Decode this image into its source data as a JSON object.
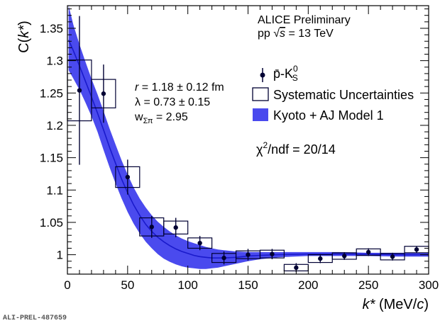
{
  "chart_data": {
    "type": "scatter",
    "title": "",
    "xlabel": {
      "main": "k*",
      "unit_open": " (MeV/",
      "unit_var": "c",
      "unit_close": ")"
    },
    "ylabel": {
      "prefix": "C(",
      "var": "k*",
      "suffix": ")"
    },
    "xlim": [
      0,
      300
    ],
    "ylim": [
      0.97,
      1.385
    ],
    "x_ticks": [
      0,
      50,
      100,
      150,
      200,
      250,
      300
    ],
    "y_ticks": [
      1,
      1.05,
      1.1,
      1.15,
      1.2,
      1.25,
      1.3,
      1.35
    ],
    "x_tick_labels": [
      "0",
      "50",
      "100",
      "150",
      "200",
      "250",
      "300"
    ],
    "y_tick_labels": [
      "1",
      "1.05",
      "1.1",
      "1.15",
      "1.2",
      "1.25",
      "1.3",
      "1.35"
    ],
    "series": [
      {
        "name": "p̄-K⁰S",
        "kind": "data",
        "color": "#000033",
        "points": [
          {
            "x": 10,
            "y": 1.254,
            "err": 0.115,
            "sys_w": 20,
            "sys_h": 0.047
          },
          {
            "x": 30,
            "y": 1.249,
            "err": 0.045,
            "sys_w": 20,
            "sys_h": 0.022
          },
          {
            "x": 50,
            "y": 1.12,
            "err": 0.027,
            "sys_w": 20,
            "sys_h": 0.016
          },
          {
            "x": 70,
            "y": 1.043,
            "err": 0.017,
            "sys_w": 20,
            "sys_h": 0.014
          },
          {
            "x": 90,
            "y": 1.042,
            "err": 0.015,
            "sys_w": 20,
            "sys_h": 0.01
          },
          {
            "x": 110,
            "y": 1.018,
            "err": 0.011,
            "sys_w": 20,
            "sys_h": 0.008
          },
          {
            "x": 130,
            "y": 0.995,
            "err": 0.01,
            "sys_w": 20,
            "sys_h": 0.007
          },
          {
            "x": 150,
            "y": 1.0,
            "err": 0.009,
            "sys_w": 20,
            "sys_h": 0.006
          },
          {
            "x": 170,
            "y": 1.001,
            "err": 0.008,
            "sys_w": 20,
            "sys_h": 0.006
          },
          {
            "x": 190,
            "y": 0.98,
            "err": 0.007,
            "sys_w": 20,
            "sys_h": 0.005
          },
          {
            "x": 210,
            "y": 0.994,
            "err": 0.007,
            "sys_w": 20,
            "sys_h": 0.006
          },
          {
            "x": 230,
            "y": 0.998,
            "err": 0.006,
            "sys_w": 20,
            "sys_h": 0.005
          },
          {
            "x": 250,
            "y": 1.004,
            "err": 0.006,
            "sys_w": 20,
            "sys_h": 0.005
          },
          {
            "x": 270,
            "y": 0.997,
            "err": 0.006,
            "sys_w": 20,
            "sys_h": 0.005
          },
          {
            "x": 290,
            "y": 1.008,
            "err": 0.005,
            "sys_w": 20,
            "sys_h": 0.005
          }
        ]
      },
      {
        "name": "Kyoto + AJ Model 1",
        "kind": "band",
        "color": "#4a4aee",
        "line_color": "#1a1acc",
        "x": [
          1,
          5,
          10,
          15,
          20,
          25,
          30,
          35,
          40,
          45,
          50,
          55,
          60,
          65,
          70,
          75,
          80,
          85,
          90,
          95,
          100,
          105,
          110,
          115,
          120,
          125,
          130,
          140,
          150,
          160,
          175,
          200,
          225,
          250,
          275,
          300
        ],
        "upper": [
          1.385,
          1.355,
          1.325,
          1.298,
          1.272,
          1.248,
          1.222,
          1.195,
          1.17,
          1.146,
          1.124,
          1.104,
          1.087,
          1.073,
          1.061,
          1.051,
          1.043,
          1.036,
          1.03,
          1.025,
          1.021,
          1.018,
          1.015,
          1.012,
          1.01,
          1.008,
          1.007,
          1.005,
          1.004,
          1.004,
          1.004,
          1.004,
          1.004,
          1.003,
          1.003,
          1.003
        ],
        "central": [
          1.332,
          1.315,
          1.292,
          1.268,
          1.244,
          1.219,
          1.193,
          1.166,
          1.141,
          1.117,
          1.096,
          1.077,
          1.061,
          1.047,
          1.036,
          1.027,
          1.02,
          1.014,
          1.009,
          1.005,
          1.002,
          0.999,
          0.997,
          0.996,
          0.995,
          0.995,
          0.995,
          0.996,
          0.998,
          0.999,
          1.0,
          1.001,
          1.001,
          1.001,
          1.0,
          1.0
        ],
        "lower": [
          1.285,
          1.272,
          1.255,
          1.235,
          1.214,
          1.19,
          1.162,
          1.135,
          1.11,
          1.087,
          1.066,
          1.048,
          1.033,
          1.02,
          1.01,
          1.001,
          0.994,
          0.989,
          0.985,
          0.982,
          0.98,
          0.979,
          0.978,
          0.978,
          0.979,
          0.98,
          0.982,
          0.986,
          0.99,
          0.993,
          0.996,
          0.998,
          0.998,
          0.998,
          0.997,
          0.997
        ]
      }
    ],
    "annotations": {
      "collab": "ALICE Preliminary",
      "system": {
        "pre": "pp ",
        "sqrt": "√",
        "var": "s",
        "post": " = 13 TeV"
      },
      "radius": {
        "var": "r",
        "text": " = 1.18 ± 0.12 fm"
      },
      "lambda": "λ = 0.73 ± 0.15",
      "weight": {
        "w": "w",
        "sub": "Σπ",
        "text": " = 2.95"
      },
      "chi2": {
        "chi": "χ",
        "sup": "2",
        "text": "/ndf = 20/14"
      },
      "fig_id": "ALI-PREL-487659"
    },
    "legend": {
      "placement": "top-right",
      "entries": [
        {
          "key": "data",
          "label_main": "p̄-K",
          "label_sup": "0",
          "label_sub": "S"
        },
        {
          "key": "sys",
          "label": "Systematic Uncertainties"
        },
        {
          "key": "band",
          "label": "Kyoto + AJ Model 1"
        }
      ]
    }
  }
}
